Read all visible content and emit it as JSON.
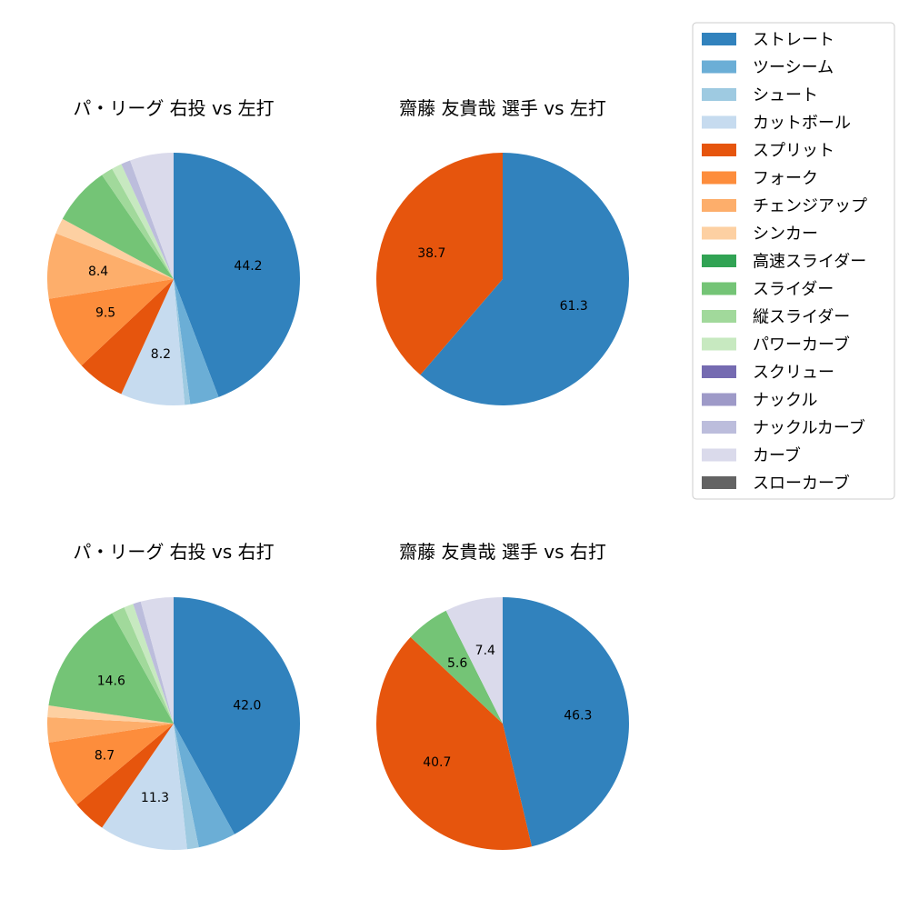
{
  "legend": {
    "items": [
      {
        "label": "ストレート",
        "color": "#3182bd"
      },
      {
        "label": "ツーシーム",
        "color": "#6baed6"
      },
      {
        "label": "シュート",
        "color": "#9ecae1"
      },
      {
        "label": "カットボール",
        "color": "#c6dbef"
      },
      {
        "label": "スプリット",
        "color": "#e6550d"
      },
      {
        "label": "フォーク",
        "color": "#fd8d3c"
      },
      {
        "label": "チェンジアップ",
        "color": "#fdae6b"
      },
      {
        "label": "シンカー",
        "color": "#fdd0a2"
      },
      {
        "label": "高速スライダー",
        "color": "#31a354"
      },
      {
        "label": "スライダー",
        "color": "#74c476"
      },
      {
        "label": "縦スライダー",
        "color": "#a1d99b"
      },
      {
        "label": "パワーカーブ",
        "color": "#c7e9c0"
      },
      {
        "label": "スクリュー",
        "color": "#756bb1"
      },
      {
        "label": "ナックル",
        "color": "#9e9ac8"
      },
      {
        "label": "ナックルカーブ",
        "color": "#bcbddc"
      },
      {
        "label": "カーブ",
        "color": "#dadaeb"
      },
      {
        "label": "スローカーブ",
        "color": "#636363"
      }
    ]
  },
  "chart_data": [
    {
      "type": "pie",
      "title": "パ・リーグ 右投 vs 左打",
      "slices": [
        {
          "label": "ストレート",
          "value": 44.2,
          "text": "44.2"
        },
        {
          "label": "ツーシーム",
          "value": 3.7,
          "text": ""
        },
        {
          "label": "シュート",
          "value": 0.7,
          "text": ""
        },
        {
          "label": "カットボール",
          "value": 8.2,
          "text": "8.2"
        },
        {
          "label": "スプリット",
          "value": 6.2,
          "text": ""
        },
        {
          "label": "フォーク",
          "value": 9.5,
          "text": "9.5"
        },
        {
          "label": "チェンジアップ",
          "value": 8.4,
          "text": "8.4"
        },
        {
          "label": "シンカー",
          "value": 2.0,
          "text": ""
        },
        {
          "label": "スライダー",
          "value": 7.5,
          "text": ""
        },
        {
          "label": "縦スライダー",
          "value": 1.5,
          "text": ""
        },
        {
          "label": "パワーカーブ",
          "value": 1.3,
          "text": ""
        },
        {
          "label": "ナックルカーブ",
          "value": 1.2,
          "text": ""
        },
        {
          "label": "カーブ",
          "value": 5.6,
          "text": ""
        }
      ]
    },
    {
      "type": "pie",
      "title": "齋藤 友貴哉 選手 vs 左打",
      "slices": [
        {
          "label": "ストレート",
          "value": 61.3,
          "text": "61.3"
        },
        {
          "label": "スプリット",
          "value": 38.7,
          "text": "38.7"
        }
      ]
    },
    {
      "type": "pie",
      "title": "パ・リーグ 右投 vs 右打",
      "slices": [
        {
          "label": "ストレート",
          "value": 42.0,
          "text": "42.0"
        },
        {
          "label": "ツーシーム",
          "value": 4.8,
          "text": ""
        },
        {
          "label": "シュート",
          "value": 1.5,
          "text": ""
        },
        {
          "label": "カットボール",
          "value": 11.3,
          "text": "11.3"
        },
        {
          "label": "スプリット",
          "value": 4.3,
          "text": ""
        },
        {
          "label": "フォーク",
          "value": 8.7,
          "text": "8.7"
        },
        {
          "label": "チェンジアップ",
          "value": 3.2,
          "text": ""
        },
        {
          "label": "シンカー",
          "value": 1.5,
          "text": ""
        },
        {
          "label": "スライダー",
          "value": 14.6,
          "text": "14.6"
        },
        {
          "label": "縦スライダー",
          "value": 1.7,
          "text": ""
        },
        {
          "label": "パワーカーブ",
          "value": 1.2,
          "text": ""
        },
        {
          "label": "ナックルカーブ",
          "value": 1.0,
          "text": ""
        },
        {
          "label": "カーブ",
          "value": 4.2,
          "text": ""
        }
      ]
    },
    {
      "type": "pie",
      "title": "齋藤 友貴哉 選手 vs 右打",
      "slices": [
        {
          "label": "ストレート",
          "value": 46.3,
          "text": "46.3"
        },
        {
          "label": "スプリット",
          "value": 40.7,
          "text": "40.7"
        },
        {
          "label": "スライダー",
          "value": 5.6,
          "text": "5.6"
        },
        {
          "label": "カーブ",
          "value": 7.4,
          "text": "7.4"
        }
      ]
    }
  ]
}
